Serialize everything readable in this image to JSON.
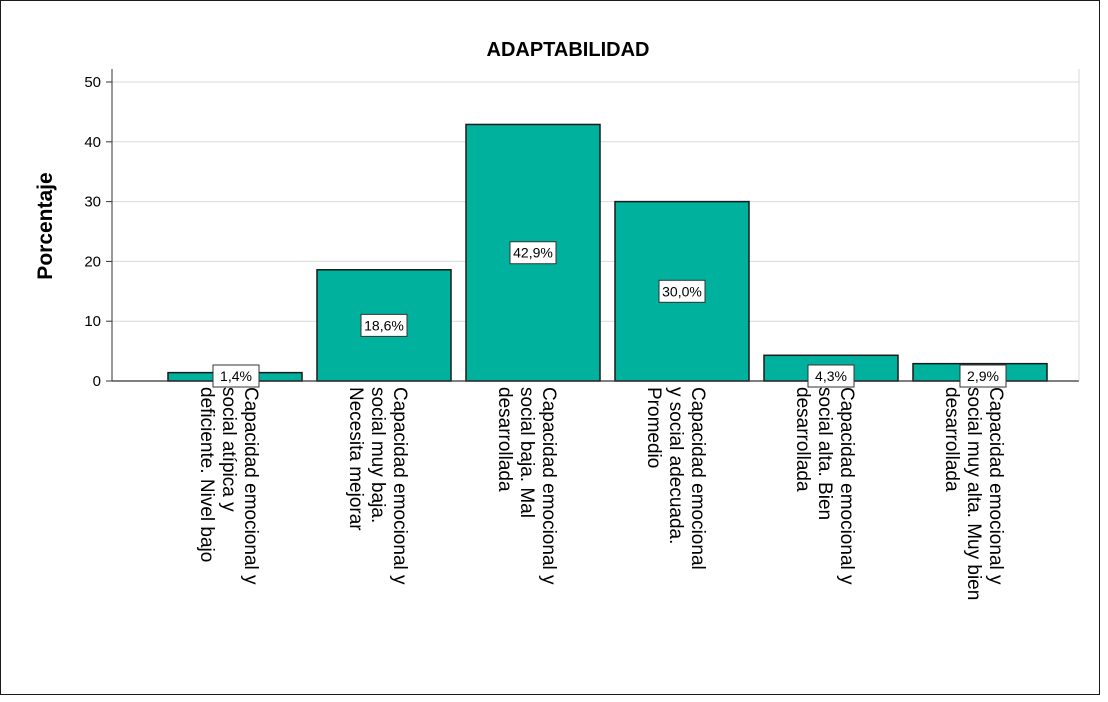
{
  "chart_data": {
    "type": "bar",
    "title": "ADAPTABILIDAD",
    "ylabel": "Porcentaje",
    "xlabel": "",
    "ylim": [
      0,
      50
    ],
    "yticks": [
      "0",
      "10",
      "20",
      "30",
      "40",
      "50"
    ],
    "grid": true,
    "categories": [
      "Capacidad emocional y social atípica y deficiente. Nivel bajo",
      "Capacidad emocional y social muy baja. Necesita mejorar",
      "Capacidad emocional y social baja. Mal desarrollada",
      "Capacidad emocional y social adecuada. Promedio",
      "Capacidad emocional y social alta. Bien desarrollada",
      "Capacidad emocional y social muy alta. Muy bien desarrollada"
    ],
    "category_lines": [
      [
        "Capacidad emocional y",
        "social atípica y",
        "deficiente. Nivel bajo"
      ],
      [
        "Capacidad emocional y",
        "social muy baja.",
        "Necesita mejorar"
      ],
      [
        "Capacidad emocional y",
        "social baja. Mal",
        "desarrollada"
      ],
      [
        "Capacidad  emocional",
        "y social adecuada.",
        "Promedio"
      ],
      [
        "Capacidad emocional y",
        "social alta. Bien",
        "desarrollada"
      ],
      [
        "Capacidad emocional y",
        "social muy alta. Muy bien",
        "desarrollada"
      ]
    ],
    "values": [
      1.4,
      18.6,
      42.9,
      30.0,
      4.3,
      2.9
    ],
    "data_labels": [
      "1,4%",
      "18,6%",
      "42,9%",
      "30,0%",
      "4,3%",
      "2,9%"
    ],
    "colors": {
      "bar": "#00b19d",
      "bar_edge": "#1a1a1a",
      "grid": "#d9d9d9",
      "axis": "#333333"
    }
  }
}
